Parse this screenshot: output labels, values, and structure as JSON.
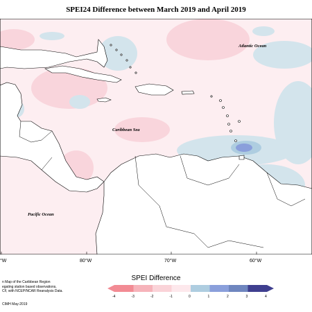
{
  "title": "SPEI24 Difference between March 2019 and April 2019",
  "map": {
    "labels": {
      "atlantic": "Atlantic Ocean",
      "caribbean": "Caribbean Sea",
      "pacific": "Pacific Ocean"
    },
    "longitudes": [
      "°W",
      "80°W",
      "70°W",
      "60°W"
    ]
  },
  "legend": {
    "title": "SPEI Difference",
    "ticks": [
      "-4",
      "-3",
      "-2",
      "-1",
      "0",
      "1",
      "2",
      "3",
      "4"
    ],
    "colors": [
      "#f28b94",
      "#f6b3ba",
      "#fad3d8",
      "#fde8ec",
      "#d3e4ec",
      "#aecde0",
      "#8a9fdb",
      "#6f86bf",
      "#3f3f8f"
    ]
  },
  "credit": {
    "lines": [
      "n Map of the Caribbean Region",
      "egating station based observations,",
      "CF, with NCEP/NCAR Reanalysis Data."
    ],
    "date": "CIMH May-2019"
  }
}
